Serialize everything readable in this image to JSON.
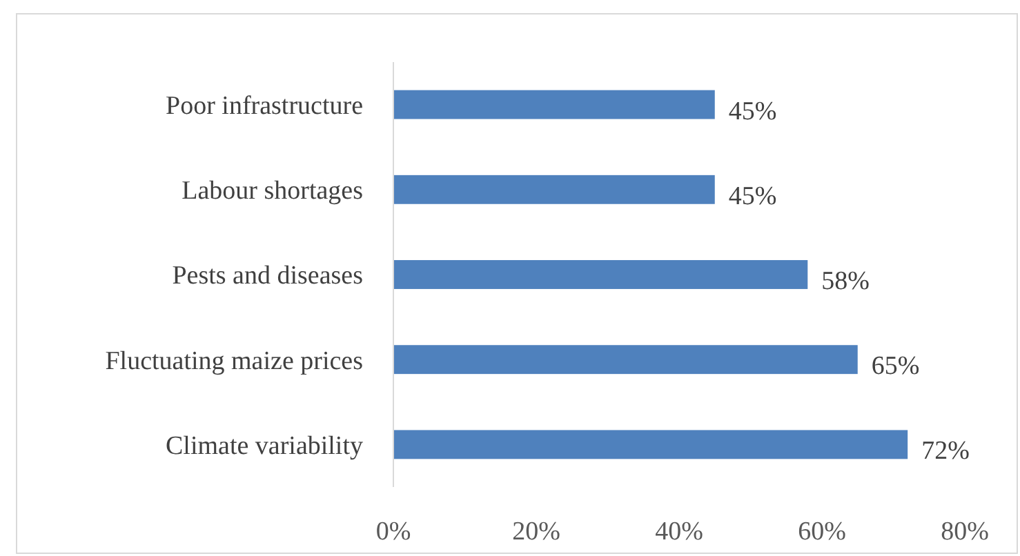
{
  "chart_data": {
    "type": "bar",
    "orientation": "horizontal",
    "categories": [
      "Poor infrastructure",
      "Labour shortages",
      "Pests and diseases",
      "Fluctuating maize prices",
      "Climate variability"
    ],
    "values": [
      45,
      45,
      58,
      65,
      72
    ],
    "color": "#4f81bd",
    "value_labels": [
      "45%",
      "45%",
      "58%",
      "65%",
      "72%"
    ],
    "xlim": [
      0,
      80
    ],
    "xticks": [
      {
        "value": 0,
        "label": "0%"
      },
      {
        "value": 20,
        "label": "20%"
      },
      {
        "value": 40,
        "label": "40%"
      },
      {
        "value": 60,
        "label": "60%"
      },
      {
        "value": 80,
        "label": "80%"
      }
    ],
    "grid": false
  }
}
